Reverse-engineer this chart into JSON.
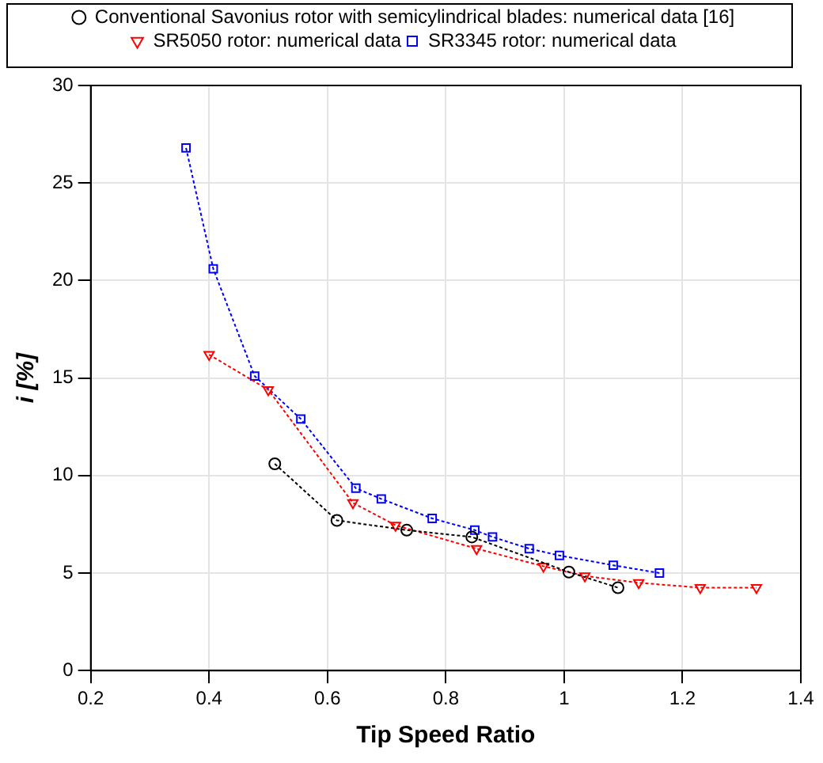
{
  "chart_data": {
    "type": "line",
    "xlabel": "Tip Speed Ratio",
    "ylabel": "i [%]",
    "xlim": [
      0.2,
      1.4
    ],
    "xticks": [
      0.2,
      0.4,
      0.6,
      0.8,
      1,
      1.2,
      1.4
    ],
    "ylim": [
      0,
      30
    ],
    "yticks": [
      0,
      5,
      10,
      15,
      20,
      25,
      30
    ],
    "grid": true,
    "legend": "top",
    "line_style": "dotted",
    "series": [
      {
        "name": "Conventional Savonius rotor with semicylindrical blades: numerical data [16]",
        "color": "#000000",
        "marker": "circle",
        "x": [
          0.511,
          0.616,
          0.734,
          0.844,
          1.008,
          1.091
        ],
        "values": [
          10.6,
          7.7,
          7.2,
          6.85,
          5.05,
          4.25
        ]
      },
      {
        "name": "SR5050 rotor: numerical data",
        "color": "#ff0000",
        "marker": "triangle",
        "x": [
          0.4,
          0.5,
          0.643,
          0.715,
          0.852,
          0.965,
          1.035,
          1.126,
          1.23,
          1.325
        ],
        "values": [
          16.2,
          14.4,
          8.6,
          7.45,
          6.25,
          5.35,
          4.85,
          4.5,
          4.25,
          4.25
        ]
      },
      {
        "name": "SR3345 rotor: numerical data",
        "color": "#0000ff",
        "marker": "square",
        "x": [
          0.361,
          0.407,
          0.477,
          0.555,
          0.648,
          0.691,
          0.777,
          0.849,
          0.879,
          0.941,
          0.992,
          1.083,
          1.161
        ],
        "values": [
          26.8,
          20.6,
          15.1,
          12.9,
          9.35,
          8.8,
          7.8,
          7.2,
          6.85,
          6.25,
          5.9,
          5.4,
          5.0
        ]
      }
    ]
  }
}
